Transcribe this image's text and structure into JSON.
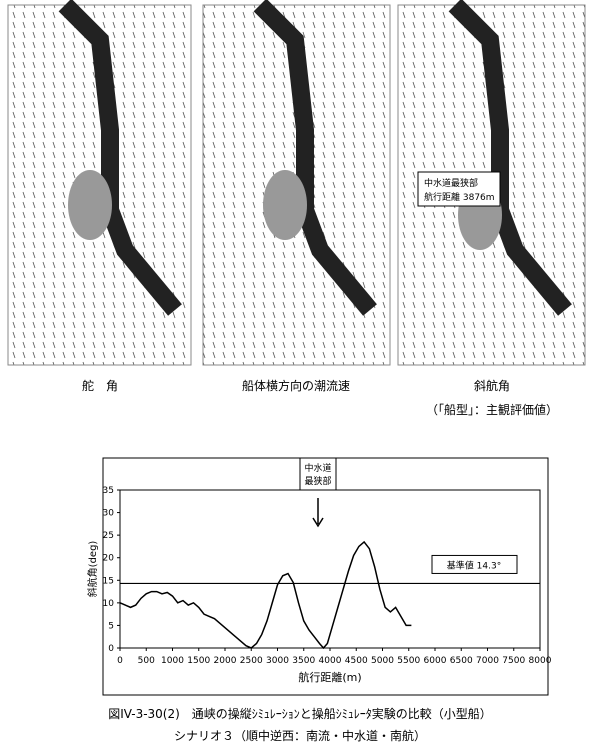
{
  "maps": [
    {
      "label": "舵　角"
    },
    {
      "label": "船体横方向の潮流速"
    },
    {
      "label": "斜航角",
      "sublabel": "（「船型」：主観評価値）",
      "callout": [
        "中水道最狭部",
        "航行距離 3876m"
      ]
    }
  ],
  "chart_data": {
    "type": "line",
    "xlabel": "航行距離(m)",
    "ylabel": "斜航角(deg)",
    "x": [
      0,
      100,
      200,
      300,
      400,
      500,
      600,
      700,
      800,
      900,
      1000,
      1100,
      1200,
      1300,
      1400,
      1500,
      1600,
      1700,
      1800,
      1900,
      2000,
      2100,
      2200,
      2300,
      2400,
      2500,
      2600,
      2700,
      2800,
      2900,
      3000,
      3100,
      3200,
      3300,
      3400,
      3500,
      3600,
      3700,
      3800,
      3876,
      3950,
      4050,
      4150,
      4250,
      4350,
      4450,
      4550,
      4650,
      4750,
      4850,
      4950,
      5050,
      5150,
      5250,
      5350,
      5450,
      5550
    ],
    "series": [
      {
        "color": "#000000",
        "values": [
          10,
          9.5,
          9,
          9.5,
          11,
          12,
          12.5,
          12.5,
          12,
          12.3,
          11.5,
          10,
          10.5,
          9.5,
          10,
          9,
          7.5,
          7,
          6.5,
          5.5,
          4.5,
          3.5,
          2.5,
          1.5,
          0.5,
          0,
          1,
          3,
          6,
          10,
          14,
          16,
          16.5,
          14.5,
          10,
          6,
          4,
          2.5,
          1,
          0,
          1,
          5,
          9,
          13,
          17,
          20.5,
          22.5,
          23.5,
          22,
          18,
          13,
          9,
          8,
          9,
          7,
          5,
          5
        ]
      }
    ],
    "xlim": [
      0,
      8000
    ],
    "xticks": [
      0,
      500,
      1000,
      1500,
      2000,
      2500,
      3000,
      3500,
      4000,
      4500,
      5000,
      5500,
      6000,
      6500,
      7000,
      7500,
      8000
    ],
    "ylim": [
      0,
      35
    ],
    "yticks": [
      0,
      5,
      10,
      15,
      20,
      25,
      30,
      35
    ],
    "reference": {
      "value": 14.3,
      "label": "基準値 14.3°"
    },
    "annotation": [
      "中水道",
      "最狭部"
    ]
  },
  "caption": [
    "図IV-3-30(2)　通峡の操縦ｼﾐｭﾚｰｼｮﾝと操船ｼﾐｭﾚｰﾀ実験の比較（小型船）",
    "シナリオ３（順中逆西：南流・中水道・南航）"
  ]
}
